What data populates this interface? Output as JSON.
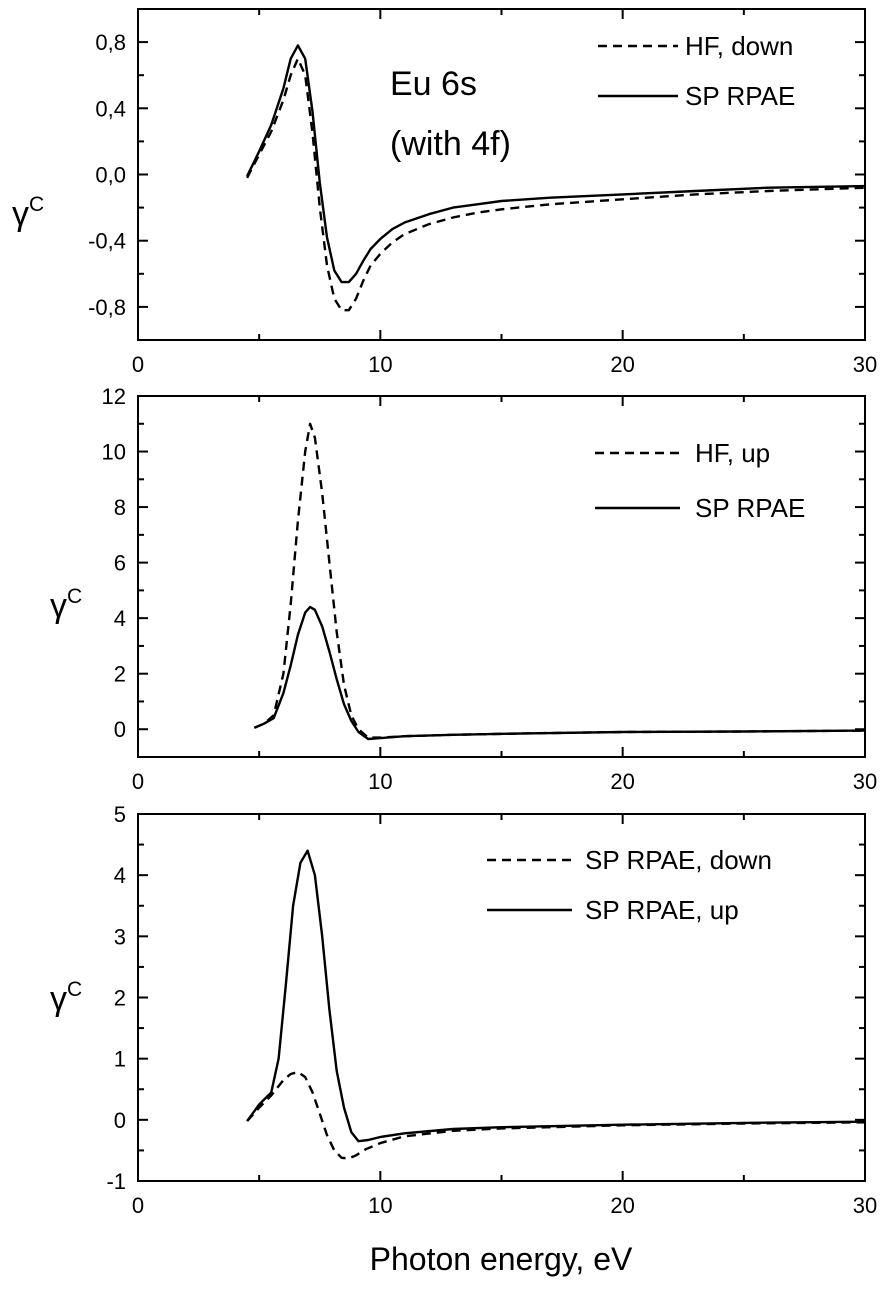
{
  "chart_data": [
    {
      "type": "line",
      "xlabel": "",
      "ylabel": "γ",
      "ylabel_superscript": "C",
      "xlim": [
        0,
        30
      ],
      "ylim": [
        -1.0,
        1.0
      ],
      "xticks": [
        0,
        10,
        20,
        30
      ],
      "xtick_labels": [
        "0",
        "10",
        "20",
        "30"
      ],
      "yticks": [
        -0.8,
        -0.4,
        0.0,
        0.4,
        0.8
      ],
      "ytick_labels": [
        "-0,8",
        "-0,4",
        "0,0",
        "0,4",
        "0,8"
      ],
      "grid": false,
      "legend_position": "top-right",
      "annotation": [
        "Eu 6s",
        "(with 4f)"
      ],
      "series": [
        {
          "name": "HF, down",
          "style": "dashed",
          "x": [
            4.5,
            5.0,
            5.5,
            6.0,
            6.3,
            6.6,
            6.9,
            7.2,
            7.5,
            7.8,
            8.1,
            8.4,
            8.7,
            9.0,
            9.3,
            9.6,
            10.0,
            10.5,
            11.0,
            12.0,
            13.0,
            14.0,
            15.0,
            17.0,
            20.0,
            23.0,
            26.0,
            30.0
          ],
          "y": [
            -0.02,
            0.12,
            0.26,
            0.45,
            0.6,
            0.7,
            0.6,
            0.25,
            -0.2,
            -0.55,
            -0.75,
            -0.82,
            -0.82,
            -0.75,
            -0.64,
            -0.55,
            -0.48,
            -0.41,
            -0.36,
            -0.3,
            -0.26,
            -0.23,
            -0.21,
            -0.18,
            -0.15,
            -0.12,
            -0.1,
            -0.08
          ]
        },
        {
          "name": "SP RPAE",
          "style": "solid",
          "x": [
            4.5,
            5.0,
            5.5,
            6.0,
            6.3,
            6.6,
            6.9,
            7.2,
            7.5,
            7.8,
            8.1,
            8.4,
            8.7,
            9.0,
            9.3,
            9.6,
            10.0,
            10.5,
            11.0,
            12.0,
            13.0,
            14.0,
            15.0,
            17.0,
            20.0,
            23.0,
            26.0,
            30.0
          ],
          "y": [
            -0.01,
            0.14,
            0.3,
            0.52,
            0.7,
            0.78,
            0.7,
            0.38,
            -0.05,
            -0.38,
            -0.58,
            -0.65,
            -0.65,
            -0.6,
            -0.52,
            -0.45,
            -0.39,
            -0.33,
            -0.29,
            -0.24,
            -0.2,
            -0.18,
            -0.16,
            -0.14,
            -0.12,
            -0.1,
            -0.08,
            -0.07
          ]
        }
      ]
    },
    {
      "type": "line",
      "xlabel": "",
      "ylabel": "γ",
      "ylabel_superscript": "C",
      "xlim": [
        0,
        30
      ],
      "ylim": [
        -1,
        12
      ],
      "xticks": [
        0,
        10,
        20,
        30
      ],
      "xtick_labels": [
        "0",
        "10",
        "20",
        "30"
      ],
      "yticks": [
        0,
        2,
        4,
        6,
        8,
        10,
        12
      ],
      "ytick_labels": [
        "0",
        "2",
        "4",
        "6",
        "8",
        "10",
        "12"
      ],
      "grid": false,
      "legend_position": "top-right",
      "series": [
        {
          "name": "HF, up",
          "style": "dashed",
          "x": [
            4.8,
            5.2,
            5.6,
            6.0,
            6.3,
            6.6,
            6.9,
            7.1,
            7.3,
            7.6,
            7.9,
            8.2,
            8.5,
            8.8,
            9.1,
            9.5,
            10.0,
            11.0,
            13.0,
            16.0,
            20.0,
            25.0,
            30.0
          ],
          "y": [
            0.05,
            0.2,
            0.5,
            2.0,
            4.5,
            7.5,
            10.0,
            11.0,
            10.5,
            8.5,
            6.0,
            3.5,
            1.6,
            0.5,
            0.0,
            -0.3,
            -0.3,
            -0.25,
            -0.2,
            -0.15,
            -0.1,
            -0.08,
            -0.05
          ]
        },
        {
          "name": "SP RPAE",
          "style": "solid",
          "x": [
            4.8,
            5.2,
            5.6,
            6.0,
            6.3,
            6.6,
            6.9,
            7.1,
            7.3,
            7.6,
            7.9,
            8.2,
            8.5,
            8.8,
            9.1,
            9.5,
            10.0,
            11.0,
            13.0,
            16.0,
            20.0,
            25.0,
            30.0
          ],
          "y": [
            0.05,
            0.2,
            0.4,
            1.3,
            2.3,
            3.4,
            4.2,
            4.4,
            4.3,
            3.7,
            2.8,
            1.8,
            0.9,
            0.3,
            -0.1,
            -0.35,
            -0.32,
            -0.25,
            -0.2,
            -0.15,
            -0.1,
            -0.08,
            -0.05
          ]
        }
      ]
    },
    {
      "type": "line",
      "xlabel": "Photon energy, eV",
      "ylabel": "γ",
      "ylabel_superscript": "C",
      "xlim": [
        0,
        30
      ],
      "ylim": [
        -1,
        5
      ],
      "xticks": [
        0,
        10,
        20,
        30
      ],
      "xtick_labels": [
        "0",
        "10",
        "20",
        "30"
      ],
      "yticks": [
        -1,
        0,
        1,
        2,
        3,
        4,
        5
      ],
      "ytick_labels": [
        "-1",
        "0",
        "1",
        "2",
        "3",
        "4",
        "5"
      ],
      "grid": false,
      "legend_position": "top-right",
      "series": [
        {
          "name": "SP RPAE, down",
          "style": "dashed",
          "x": [
            4.5,
            5.0,
            5.5,
            6.0,
            6.3,
            6.6,
            6.9,
            7.2,
            7.5,
            7.8,
            8.1,
            8.4,
            8.7,
            9.0,
            9.4,
            10.0,
            11.0,
            13.0,
            15.0,
            20.0,
            25.0,
            30.0
          ],
          "y": [
            -0.02,
            0.2,
            0.4,
            0.65,
            0.75,
            0.78,
            0.7,
            0.45,
            0.1,
            -0.25,
            -0.5,
            -0.62,
            -0.63,
            -0.58,
            -0.48,
            -0.38,
            -0.27,
            -0.18,
            -0.14,
            -0.09,
            -0.06,
            -0.04
          ]
        },
        {
          "name": "SP RPAE, up",
          "style": "solid",
          "x": [
            4.5,
            5.0,
            5.5,
            5.8,
            6.1,
            6.4,
            6.7,
            7.0,
            7.3,
            7.6,
            7.9,
            8.2,
            8.5,
            8.8,
            9.1,
            9.5,
            10.0,
            11.0,
            13.0,
            15.0,
            20.0,
            25.0,
            30.0
          ],
          "y": [
            -0.02,
            0.25,
            0.45,
            1.0,
            2.2,
            3.5,
            4.2,
            4.4,
            4.0,
            3.0,
            1.8,
            0.8,
            0.2,
            -0.2,
            -0.35,
            -0.33,
            -0.28,
            -0.22,
            -0.15,
            -0.12,
            -0.08,
            -0.05,
            -0.03
          ]
        }
      ]
    }
  ]
}
